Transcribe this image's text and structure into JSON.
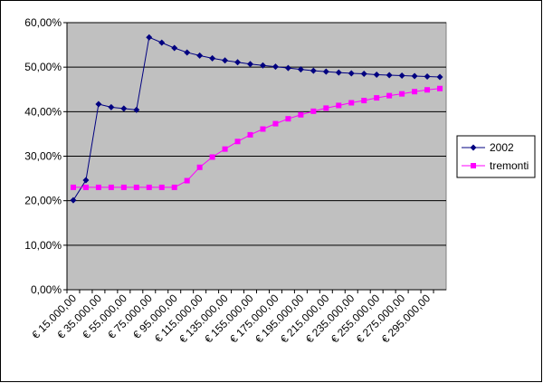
{
  "chart_data": {
    "type": "line",
    "categories": [
      "€ 15.000,00",
      null,
      "€ 35.000,00",
      null,
      "€ 55.000,00",
      null,
      "€ 75.000,00",
      null,
      "€ 95.000,00",
      null,
      "€ 115.000,00",
      null,
      "€ 135.000,00",
      null,
      "€ 155.000,00",
      null,
      "€ 175.000,00",
      null,
      "€ 195.000,00",
      null,
      "€ 215.000,00",
      null,
      "€ 235.000,00",
      null,
      "€ 255.000,00",
      null,
      "€ 275.000,00",
      null,
      "€ 295.000,00",
      null
    ],
    "series": [
      {
        "name": "2002",
        "color": "#000080",
        "marker": "diamond",
        "values": [
          20.1,
          24.6,
          41.7,
          41.0,
          40.7,
          40.4,
          56.7,
          55.5,
          54.3,
          53.3,
          52.6,
          52.0,
          51.5,
          51.1,
          50.7,
          50.4,
          50.1,
          49.8,
          49.5,
          49.2,
          49.0,
          48.8,
          48.6,
          48.5,
          48.3,
          48.2,
          48.1,
          48.0,
          47.9,
          47.8
        ]
      },
      {
        "name": "tremonti",
        "color": "#ff00ff",
        "marker": "square",
        "values": [
          23.0,
          23.0,
          23.0,
          23.0,
          23.0,
          23.0,
          23.0,
          23.0,
          23.0,
          24.5,
          27.5,
          29.8,
          31.6,
          33.3,
          34.8,
          36.1,
          37.3,
          38.4,
          39.3,
          40.1,
          40.8,
          41.4,
          42.0,
          42.5,
          43.1,
          43.6,
          44.0,
          44.5,
          44.9,
          45.2
        ]
      }
    ],
    "ylim": [
      0,
      60
    ],
    "yticks": [
      {
        "value": 0,
        "label": "0,00%"
      },
      {
        "value": 10,
        "label": "10,00%"
      },
      {
        "value": 20,
        "label": "20,00%"
      },
      {
        "value": 30,
        "label": "30,00%"
      },
      {
        "value": 40,
        "label": "40,00%"
      },
      {
        "value": 50,
        "label": "50,00%"
      },
      {
        "value": 60,
        "label": "60,00%"
      }
    ],
    "grid": true,
    "legend": "right",
    "plot_background": "#c0c0c0"
  }
}
